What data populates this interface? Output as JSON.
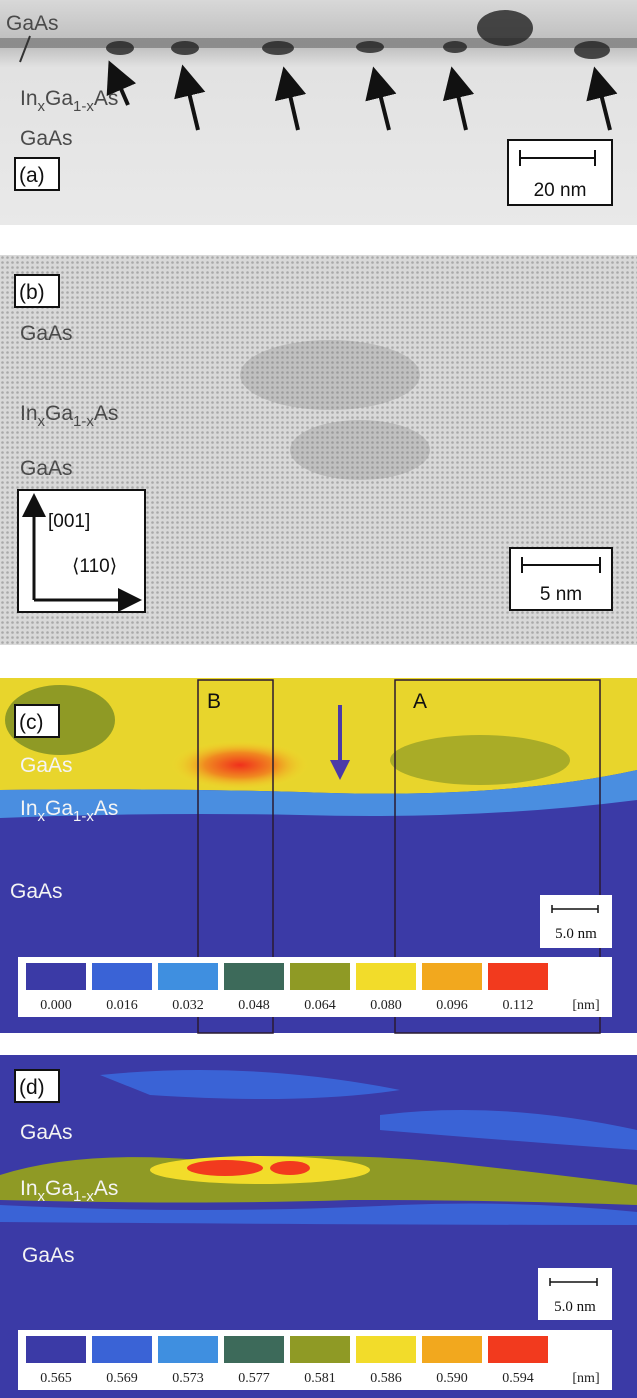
{
  "panels": [
    {
      "label": "(a)",
      "layers": [
        [
          "GaAs"
        ],
        [
          "In",
          "x",
          "Ga",
          "1-x",
          "As"
        ],
        [
          "GaAs"
        ]
      ],
      "scale_bar": "20 nm"
    },
    {
      "label": "(b)",
      "layers": [
        [
          "GaAs"
        ],
        [
          "In",
          "x",
          "Ga",
          "1-x",
          "As"
        ],
        [
          "GaAs"
        ]
      ],
      "directions": [
        "[001]",
        "⟨110⟩"
      ],
      "scale_bar": "5 nm"
    },
    {
      "label": "(c)",
      "layers": [
        [
          "GaAs"
        ],
        [
          "In",
          "x",
          "Ga",
          "1-x",
          "As"
        ],
        [
          "GaAs"
        ]
      ],
      "regions": [
        "B",
        "A"
      ],
      "scale_bar": "5.0 nm",
      "colorbar": {
        "labels": [
          "0.000",
          "0.016",
          "0.032",
          "0.048",
          "0.064",
          "0.080",
          "0.096",
          "0.112"
        ],
        "colors": [
          "#3b3aa6",
          "#3a63d6",
          "#3f8fe0",
          "#3d6a5a",
          "#8f9a25",
          "#f2dc2a",
          "#f2a81e",
          "#f23a1e"
        ],
        "unit": "[nm]"
      }
    },
    {
      "label": "(d)",
      "layers": [
        [
          "GaAs"
        ],
        [
          "In",
          "x",
          "Ga",
          "1-x",
          "As"
        ],
        [
          "GaAs"
        ]
      ],
      "scale_bar": "5.0 nm",
      "colorbar": {
        "labels": [
          "0.565",
          "0.569",
          "0.573",
          "0.577",
          "0.581",
          "0.586",
          "0.590",
          "0.594"
        ],
        "colors": [
          "#3b3aa6",
          "#3a63d6",
          "#3f8fe0",
          "#3d6a5a",
          "#8f9a25",
          "#f2dc2a",
          "#f2a81e",
          "#f23a1e"
        ],
        "unit": "[nm]"
      }
    }
  ]
}
